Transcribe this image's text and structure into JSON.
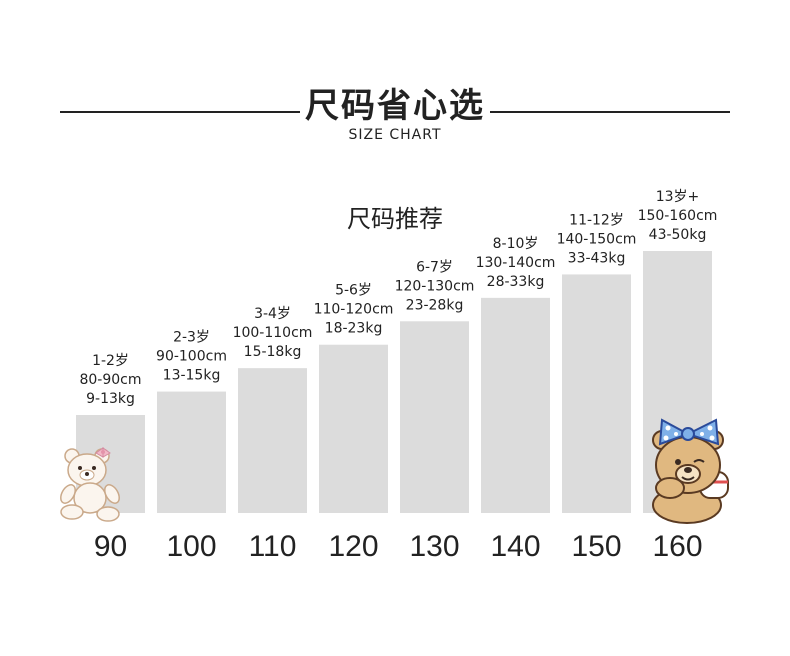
{
  "header": {
    "title": "尺码省心选",
    "subtitle": "SIZE CHART",
    "section_title": "尺码推荐"
  },
  "chart_data": {
    "type": "bar",
    "categories": [
      "90",
      "100",
      "110",
      "120",
      "130",
      "140",
      "150",
      "160"
    ],
    "values": [
      1,
      2,
      3,
      4,
      5,
      6,
      7,
      8
    ],
    "annotations": [
      [
        "1-2岁",
        "80-90cm",
        "9-13kg"
      ],
      [
        "2-3岁",
        "90-100cm",
        "13-15kg"
      ],
      [
        "3-4岁",
        "100-110cm",
        "15-18kg"
      ],
      [
        "5-6岁",
        "110-120cm",
        "18-23kg"
      ],
      [
        "6-7岁",
        "120-130cm",
        "23-28kg"
      ],
      [
        "8-10岁",
        "130-140cm",
        "28-33kg"
      ],
      [
        "11-12岁",
        "140-150cm",
        "33-43kg"
      ],
      [
        "13岁+",
        "150-160cm",
        "43-50kg"
      ]
    ],
    "bar_color": "#dcdcdc"
  },
  "icons": [
    "teddy-bear-icon",
    "bear-with-bow-icon"
  ]
}
